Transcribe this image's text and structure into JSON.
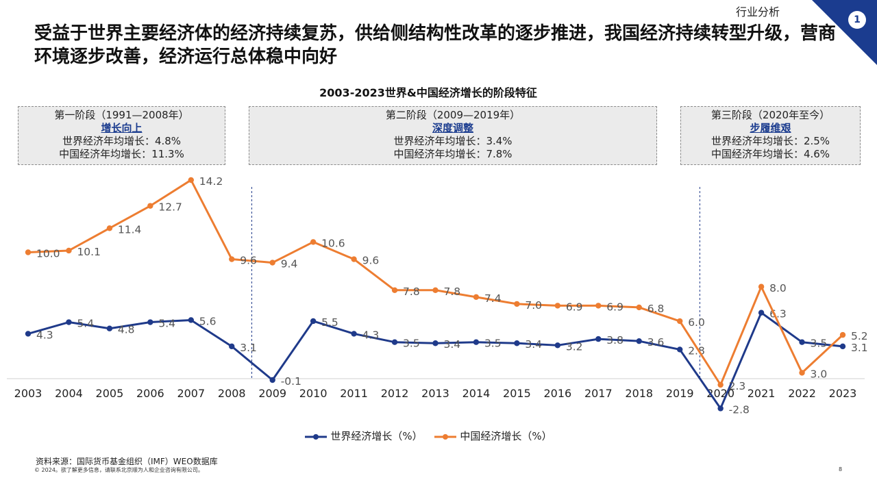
{
  "header": {
    "section": "行业分析",
    "page_badge": "1",
    "headline": "受益于世界主要经济体的经济持续复苏，供给侧结构性改革的逐步推进，我国经济持续转型升级，营商环境逐步改善，经济运行总体稳中向好"
  },
  "phases": [
    {
      "period": "第一阶段（1991—2008年）",
      "name": "增长向上",
      "world": "世界经济年均增长：4.8%",
      "china": "中国经济年均增长：11.3%"
    },
    {
      "period": "第二阶段（2009—2019年）",
      "name": "深度调整",
      "world": "世界经济年均增长：3.4%",
      "china": "中国经济年均增长：7.8%"
    },
    {
      "period": "第三阶段（2020年至今）",
      "name": "步履维艰",
      "world": "世界经济年均增长：2.5%",
      "china": "中国经济年均增长：4.6%"
    }
  ],
  "chart_data": {
    "type": "line",
    "title": "2003-2023世界&中国经济增长的阶段特征",
    "x": [
      "2003",
      "2004",
      "2005",
      "2006",
      "2007",
      "2008",
      "2009",
      "2010",
      "2011",
      "2012",
      "2013",
      "2014",
      "2015",
      "2016",
      "2017",
      "2018",
      "2019",
      "2020",
      "2021",
      "2022",
      "2023"
    ],
    "series": [
      {
        "name": "世界经济增长（%）",
        "color": "#1f3a8a",
        "values": [
          4.3,
          5.4,
          4.8,
          5.4,
          5.6,
          3.1,
          -0.1,
          5.5,
          4.3,
          3.5,
          3.4,
          3.5,
          3.4,
          3.2,
          3.8,
          3.6,
          2.8,
          -2.8,
          6.3,
          3.5,
          3.1
        ]
      },
      {
        "name": "中国经济增长（%）",
        "color": "#ed7d31",
        "values": [
          10.0,
          10.1,
          11.4,
          12.7,
          14.2,
          9.6,
          9.4,
          10.6,
          9.6,
          7.8,
          7.8,
          7.4,
          7.0,
          6.9,
          6.9,
          6.8,
          6.0,
          2.3,
          8.0,
          3.0,
          5.2
        ]
      }
    ],
    "labels": {
      "world": [
        "4.3",
        "5.4",
        "4.8",
        "5.4",
        "5.6",
        "3.1",
        "-0.1",
        "5.5",
        "4.3",
        "3.5",
        "3.4",
        "3.5",
        "3.4",
        "3.2",
        "3.8",
        "3.6",
        "2.8",
        "-2.8",
        "6.3",
        "3.5",
        "3.1"
      ],
      "china": [
        "10.0",
        "10.1",
        "11.4",
        "12.7",
        "14.2",
        "9.6",
        "9.4",
        "10.6",
        "9.6",
        "7.8",
        "7.8",
        "7.4",
        "7.0",
        "6.9",
        "6.9",
        "6.8",
        "6.0",
        "2.3",
        "8.0",
        "3.0",
        "5.2"
      ]
    },
    "phase_dividers": [
      "2008",
      "2019"
    ],
    "legend_position": "bottom",
    "grid": false
  },
  "footer": {
    "source": "资料来源：国际货币基金组织（IMF）WEO数据库",
    "copyright": "© 2024。欲了解更多信息，请联系北京顺为人和企业咨询有限公司。",
    "page": "8"
  }
}
